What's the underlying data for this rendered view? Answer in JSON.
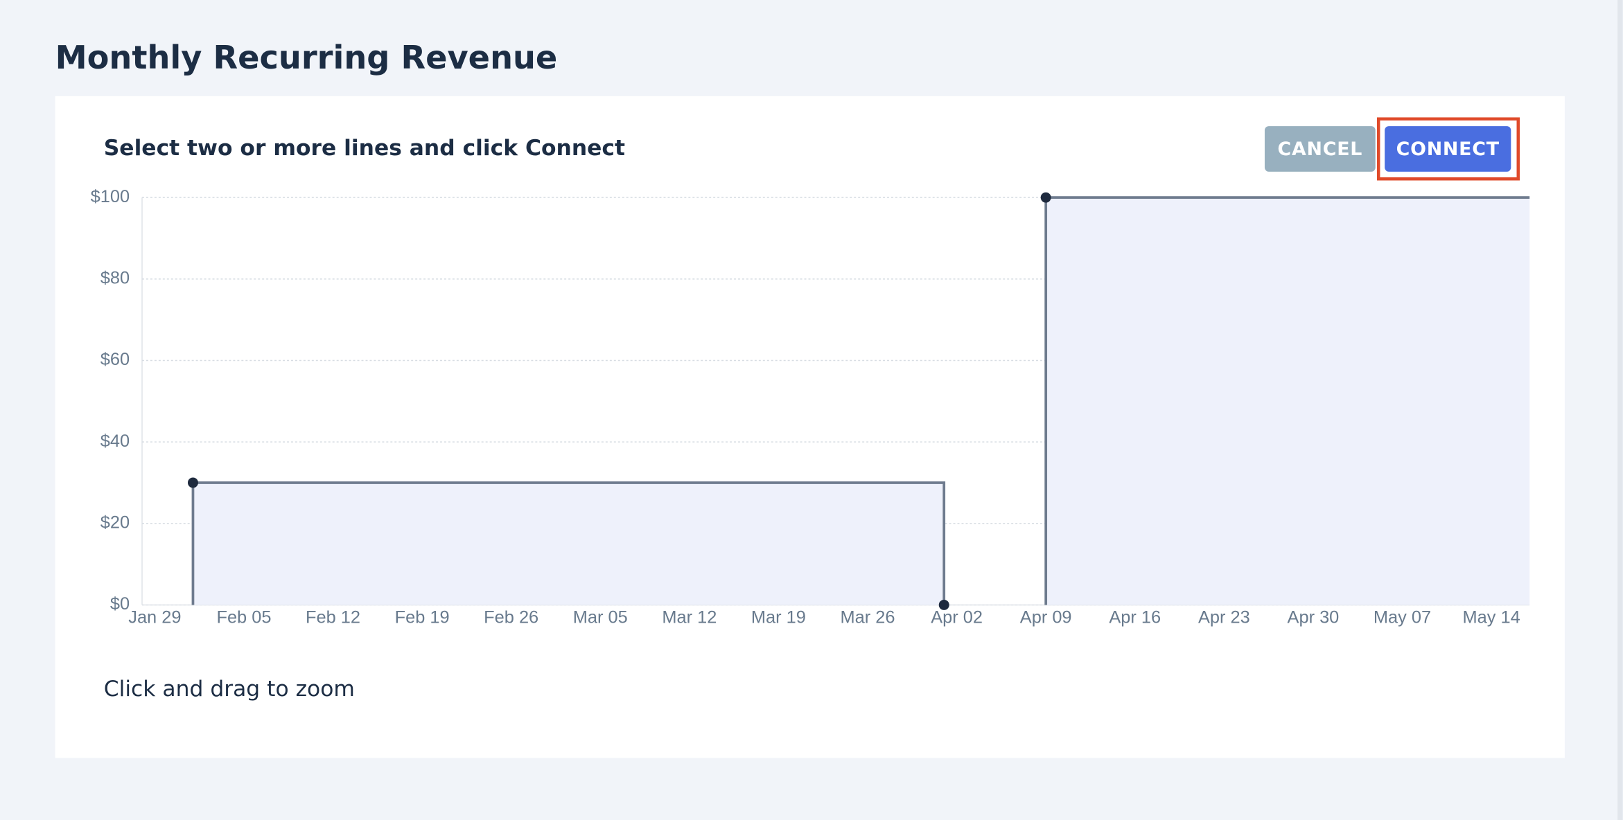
{
  "title": "Monthly Recurring Revenue",
  "instruction": "Select two or more lines and click Connect",
  "buttons": [
    "CANCEL",
    "CONNECT"
  ],
  "footer_note": "Click and drag to zoom",
  "chart_data": {
    "type": "line",
    "step": "post",
    "series": [
      {
        "color": "#6e7b8e",
        "fill": "#eef1fb",
        "x": [
          3,
          62
        ],
        "values": [
          30,
          0
        ]
      },
      {
        "color": "#6e7b8e",
        "fill": "#eef1fb",
        "x": [
          70
        ],
        "values": [
          100
        ]
      }
    ],
    "xlim": [
      -1,
      108
    ],
    "xticks": [
      {
        "value": 0,
        "label": "Jan 29"
      },
      {
        "value": 7,
        "label": "Feb 05"
      },
      {
        "value": 14,
        "label": "Feb 12"
      },
      {
        "value": 21,
        "label": "Feb 19"
      },
      {
        "value": 28,
        "label": "Feb 26"
      },
      {
        "value": 35,
        "label": "Mar 05"
      },
      {
        "value": 42,
        "label": "Mar 12"
      },
      {
        "value": 49,
        "label": "Mar 19"
      },
      {
        "value": 56,
        "label": "Mar 26"
      },
      {
        "value": 63,
        "label": "Apr 02"
      },
      {
        "value": 70,
        "label": "Apr 09"
      },
      {
        "value": 77,
        "label": "Apr 16"
      },
      {
        "value": 84,
        "label": "Apr 23"
      },
      {
        "value": 91,
        "label": "Apr 30"
      },
      {
        "value": 98,
        "label": "May 07"
      },
      {
        "value": 105,
        "label": "May 14"
      }
    ],
    "ylim": [
      0,
      100
    ],
    "yticks": [
      {
        "value": 0,
        "label": "$0"
      },
      {
        "value": 20,
        "label": "$20"
      },
      {
        "value": 40,
        "label": "$40"
      },
      {
        "value": 60,
        "label": "$60"
      },
      {
        "value": 80,
        "label": "$80"
      },
      {
        "value": 100,
        "label": "$100"
      }
    ],
    "grid": true
  }
}
